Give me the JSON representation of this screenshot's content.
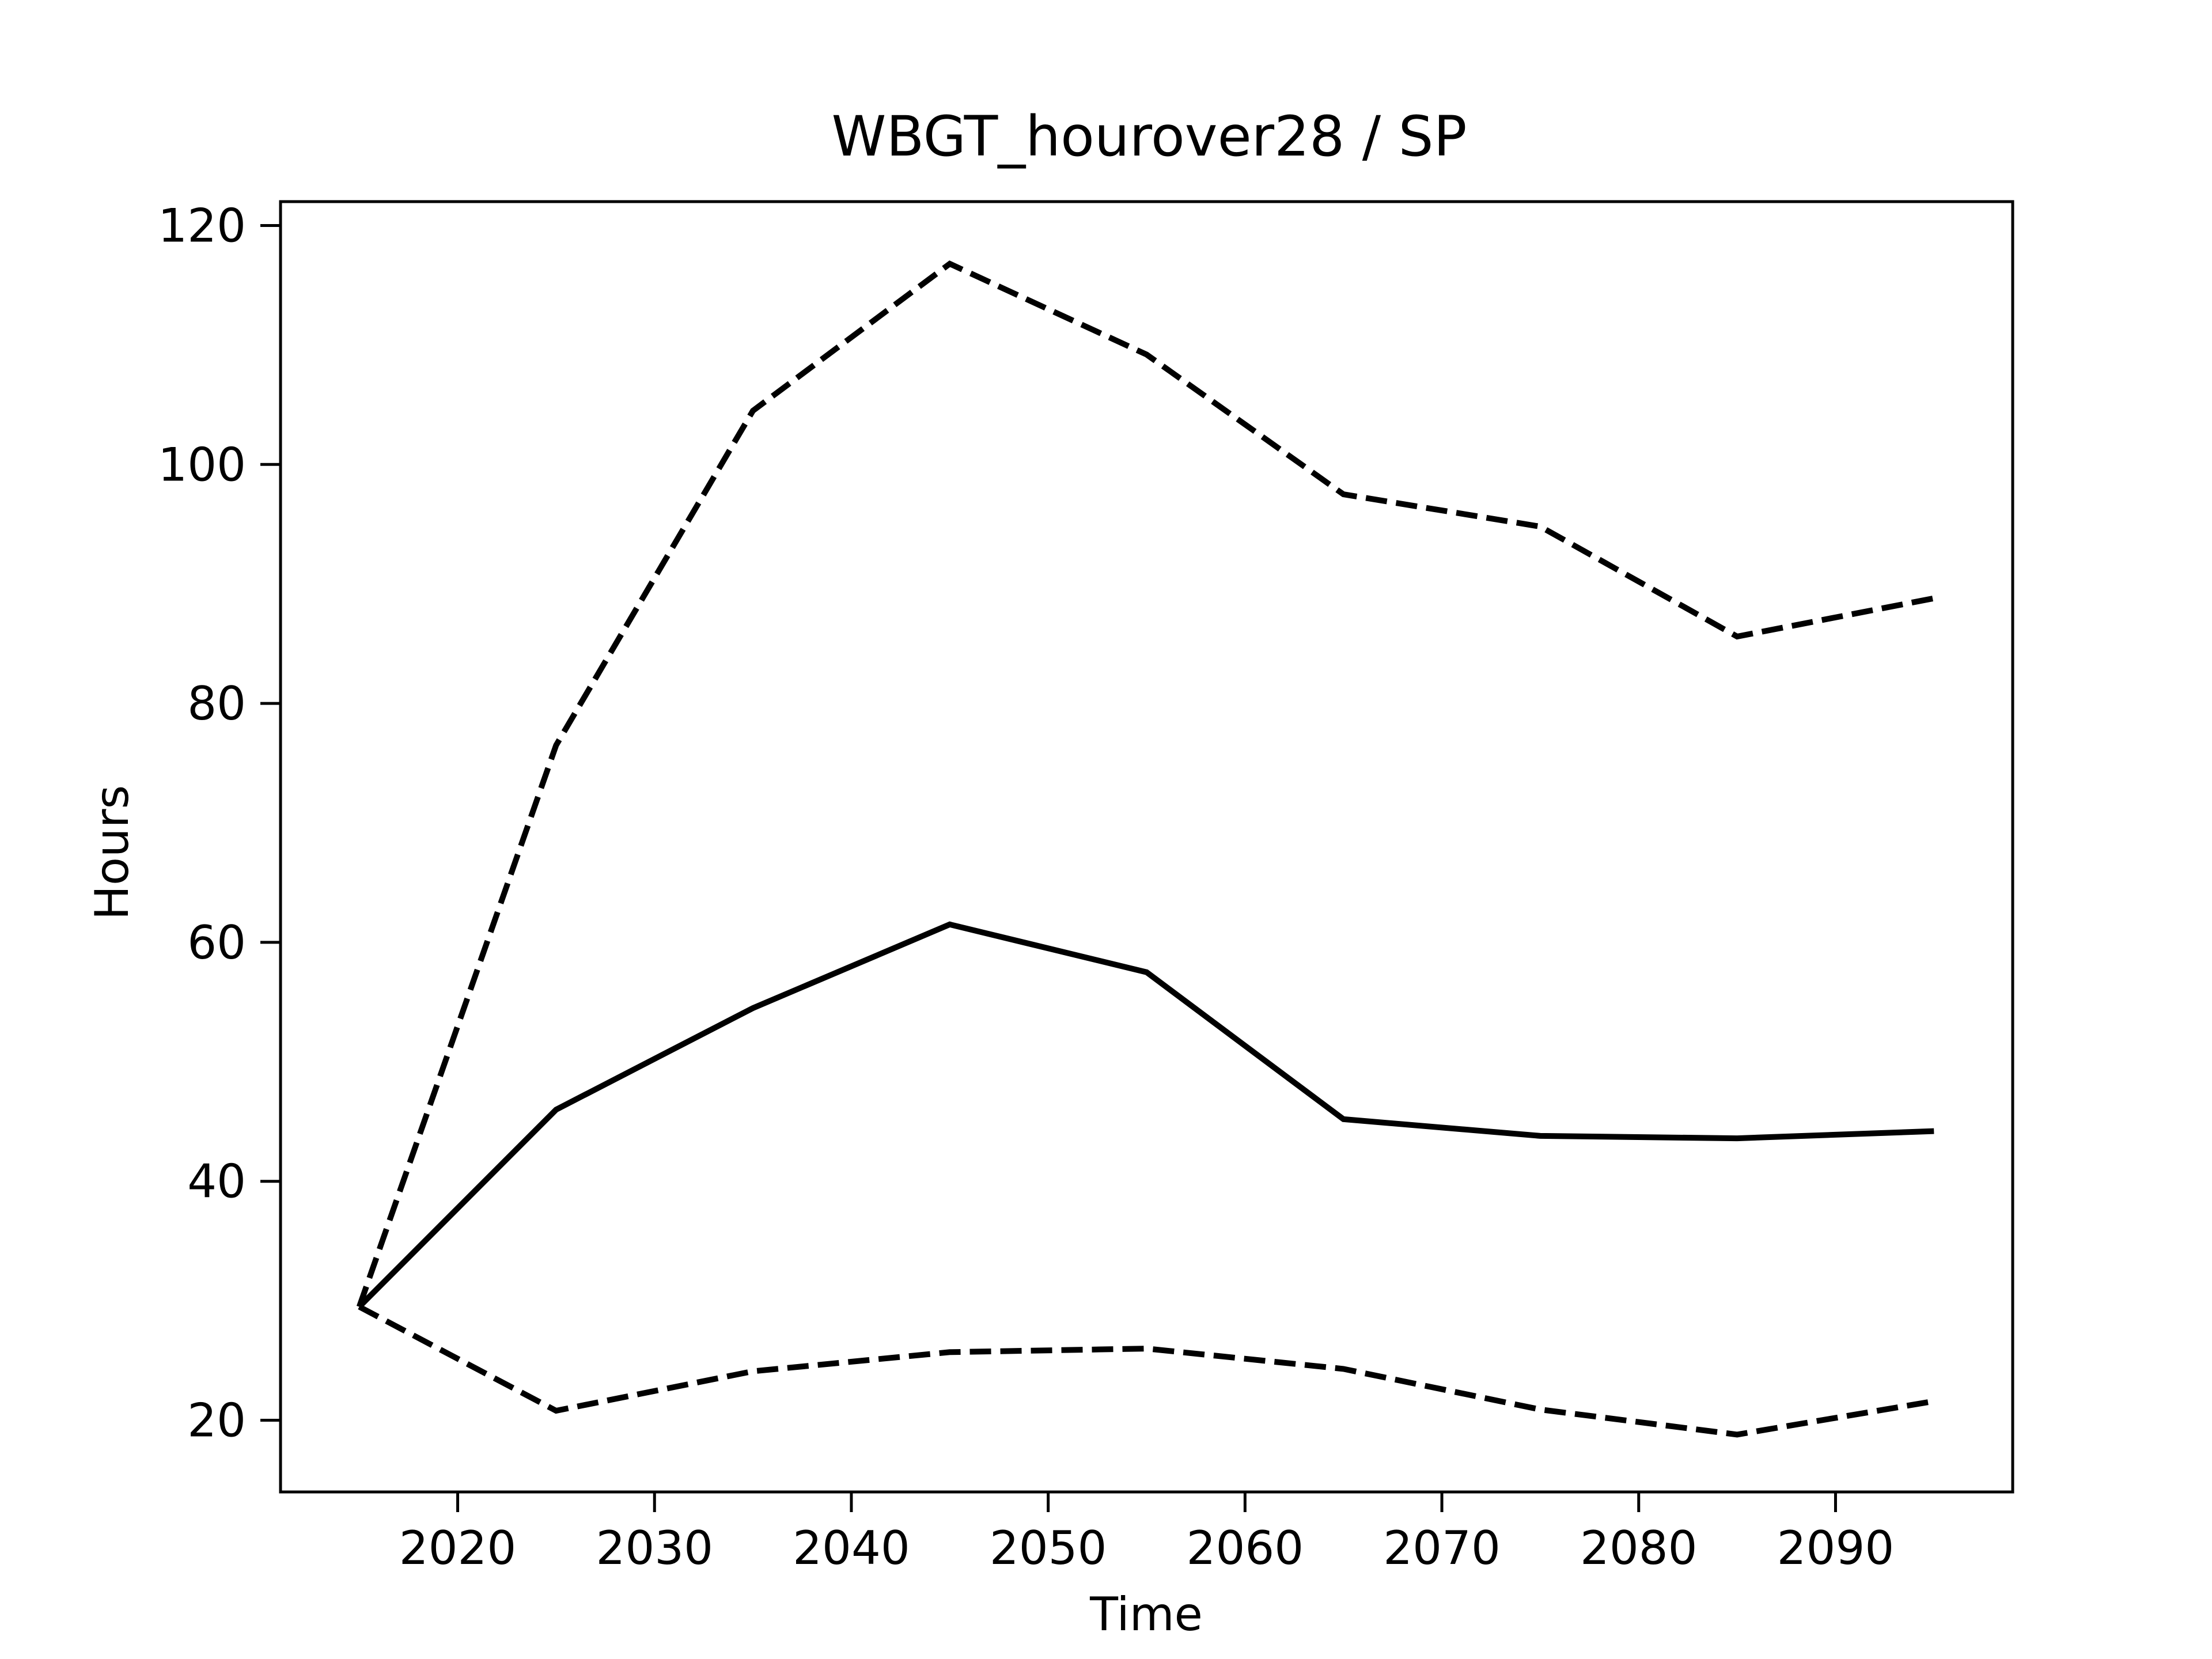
{
  "chart_data": {
    "type": "line",
    "title": "WBGT_hourover28 / SP",
    "xlabel": "Time",
    "ylabel": "Hours",
    "xlim": [
      2011,
      2099
    ],
    "ylim": [
      14,
      122
    ],
    "x_ticks": [
      2020,
      2030,
      2040,
      2050,
      2060,
      2070,
      2080,
      2090
    ],
    "y_ticks": [
      20,
      40,
      60,
      80,
      100,
      120
    ],
    "grid": false,
    "legend": null,
    "x": [
      2015,
      2025,
      2035,
      2045,
      2055,
      2065,
      2075,
      2085,
      2095
    ],
    "series": [
      {
        "style": "solid",
        "color": "#000000",
        "values": [
          29.5,
          46.0,
          54.5,
          61.5,
          57.5,
          45.2,
          43.8,
          43.6,
          44.2
        ]
      },
      {
        "style": "dashed",
        "color": "#000000",
        "values": [
          29.5,
          76.5,
          104.5,
          116.8,
          109.2,
          97.5,
          94.8,
          85.6,
          88.8
        ]
      },
      {
        "style": "dashed",
        "color": "#000000",
        "values": [
          29.5,
          20.8,
          24.1,
          25.7,
          26.0,
          24.3,
          20.9,
          18.8,
          21.6
        ]
      }
    ]
  }
}
